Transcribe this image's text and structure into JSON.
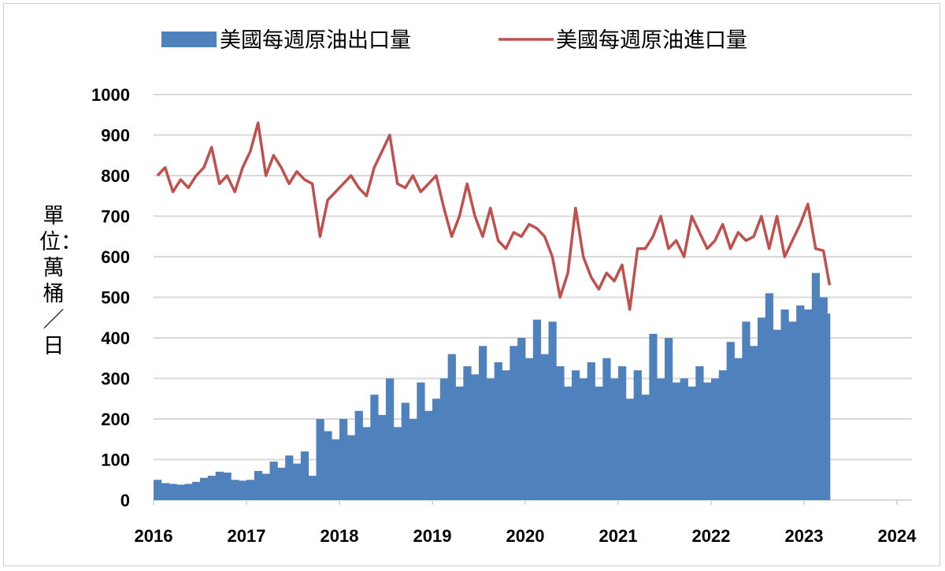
{
  "chart_data": {
    "type": "bar+line",
    "title": "",
    "ylabel": "單位：萬桶／日",
    "xlabel": "",
    "ylim": [
      0,
      1000
    ],
    "yticks": [
      "0",
      "100",
      "200",
      "300",
      "400",
      "500",
      "600",
      "700",
      "800",
      "900",
      "1000"
    ],
    "xlim": [
      2016,
      2024
    ],
    "xticks": [
      "2016",
      "2017",
      "2018",
      "2019",
      "2020",
      "2021",
      "2022",
      "2023",
      "2024"
    ],
    "grid": "horizontal",
    "legend": "top",
    "colors": {
      "exports": "#4f81bd",
      "imports": "#c0504d",
      "grid": "#d9d9d9"
    },
    "x": [
      "2016-01",
      "2016-02",
      "2016-03",
      "2016-04",
      "2016-05",
      "2016-06",
      "2016-07",
      "2016-08",
      "2016-09",
      "2016-10",
      "2016-11",
      "2016-12",
      "2017-01",
      "2017-02",
      "2017-03",
      "2017-04",
      "2017-05",
      "2017-06",
      "2017-07",
      "2017-08",
      "2017-09",
      "2017-10",
      "2017-11",
      "2017-12",
      "2018-01",
      "2018-02",
      "2018-03",
      "2018-04",
      "2018-05",
      "2018-06",
      "2018-07",
      "2018-08",
      "2018-09",
      "2018-10",
      "2018-11",
      "2018-12",
      "2019-01",
      "2019-02",
      "2019-03",
      "2019-04",
      "2019-05",
      "2019-06",
      "2019-07",
      "2019-08",
      "2019-09",
      "2019-10",
      "2019-11",
      "2019-12",
      "2020-01",
      "2020-02",
      "2020-03",
      "2020-04",
      "2020-05",
      "2020-06",
      "2020-07",
      "2020-08",
      "2020-09",
      "2020-10",
      "2020-11",
      "2020-12",
      "2021-01",
      "2021-02",
      "2021-03",
      "2021-04",
      "2021-05",
      "2021-06",
      "2021-07",
      "2021-08",
      "2021-09",
      "2021-10",
      "2021-11",
      "2021-12",
      "2022-01",
      "2022-02",
      "2022-03",
      "2022-04",
      "2022-05",
      "2022-06",
      "2022-07",
      "2022-08",
      "2022-09",
      "2022-10",
      "2022-11",
      "2022-12",
      "2023-01",
      "2023-02",
      "2023-03",
      "2023-04"
    ],
    "series": [
      {
        "name": "美國每週原油出口量",
        "kind": "bar",
        "values": [
          50,
          42,
          40,
          38,
          40,
          45,
          55,
          60,
          70,
          68,
          50,
          48,
          50,
          72,
          65,
          95,
          80,
          110,
          90,
          120,
          60,
          200,
          170,
          150,
          200,
          160,
          220,
          180,
          260,
          210,
          300,
          180,
          240,
          200,
          290,
          220,
          250,
          300,
          360,
          280,
          330,
          310,
          380,
          300,
          340,
          320,
          380,
          400,
          350,
          445,
          360,
          440,
          330,
          280,
          320,
          300,
          340,
          280,
          350,
          300,
          330,
          250,
          320,
          260,
          410,
          300,
          400,
          290,
          300,
          280,
          330,
          290,
          300,
          320,
          390,
          350,
          440,
          380,
          450,
          510,
          420,
          470,
          440,
          480,
          470,
          560,
          500,
          460
        ]
      },
      {
        "name": "美國每週原油進口量",
        "kind": "line",
        "values": [
          800,
          820,
          760,
          790,
          770,
          800,
          820,
          870,
          780,
          800,
          760,
          820,
          860,
          930,
          800,
          850,
          820,
          780,
          810,
          790,
          780,
          650,
          740,
          760,
          780,
          800,
          770,
          750,
          820,
          860,
          900,
          780,
          770,
          800,
          760,
          780,
          800,
          720,
          650,
          700,
          780,
          700,
          650,
          720,
          640,
          620,
          660,
          650,
          680,
          670,
          650,
          600,
          500,
          560,
          720,
          600,
          550,
          520,
          560,
          540,
          580,
          470,
          620,
          620,
          650,
          700,
          620,
          640,
          600,
          700,
          660,
          620,
          640,
          680,
          620,
          660,
          640,
          650,
          700,
          620,
          700,
          600,
          640,
          680,
          730,
          620,
          615,
          530
        ]
      }
    ]
  }
}
